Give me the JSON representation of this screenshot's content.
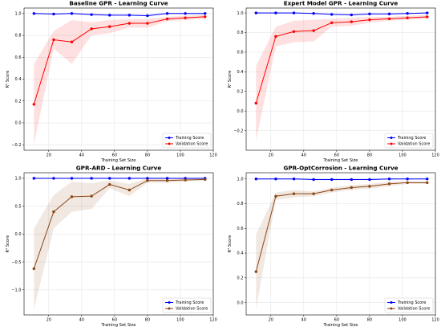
{
  "chart_data": [
    {
      "type": "line",
      "title": "Baseline GPR - Learning Curve",
      "xlabel": "Training Set Size",
      "ylabel": "R² Score",
      "xlim": [
        5,
        120
      ],
      "ylim": [
        -0.25,
        1.05
      ],
      "xticks": [
        20,
        40,
        60,
        80,
        100,
        120
      ],
      "yticks": [
        -0.2,
        0.0,
        0.2,
        0.4,
        0.6,
        0.8,
        1.0
      ],
      "grid": true,
      "legend": "bottom-right",
      "x": [
        11,
        23,
        34,
        46,
        57,
        69,
        80,
        92,
        103,
        115
      ],
      "series": [
        {
          "name": "Training Score",
          "color": "#0000ff",
          "values": [
            1.0,
            0.995,
            1.0,
            0.99,
            0.985,
            0.985,
            0.98,
            1.0,
            1.0,
            1.0
          ],
          "band": [
            [
              0.995,
              1.005
            ],
            [
              0.99,
              1.0
            ],
            [
              0.995,
              1.005
            ],
            [
              0.985,
              0.995
            ],
            [
              0.98,
              0.99
            ],
            [
              0.98,
              0.99
            ],
            [
              0.975,
              0.985
            ],
            [
              0.995,
              1.005
            ],
            [
              0.995,
              1.005
            ],
            [
              0.995,
              1.005
            ]
          ]
        },
        {
          "name": "Validation Score",
          "color": "#ff0000",
          "values": [
            0.17,
            0.76,
            0.74,
            0.86,
            0.88,
            0.91,
            0.91,
            0.95,
            0.96,
            0.97
          ],
          "band": [
            [
              -0.2,
              0.54
            ],
            [
              0.68,
              0.84
            ],
            [
              0.54,
              0.94
            ],
            [
              0.8,
              0.92
            ],
            [
              0.82,
              0.94
            ],
            [
              0.87,
              0.95
            ],
            [
              0.87,
              0.95
            ],
            [
              0.93,
              0.97
            ],
            [
              0.94,
              0.98
            ],
            [
              0.95,
              0.99
            ]
          ]
        }
      ]
    },
    {
      "type": "line",
      "title": "Expert Model GPR - Learning Curve",
      "xlabel": "Training Set Size",
      "ylabel": "R² Score",
      "xlim": [
        5,
        120
      ],
      "ylim": [
        -0.4,
        1.05
      ],
      "xticks": [
        20,
        40,
        60,
        80,
        100,
        120
      ],
      "yticks": [
        -0.2,
        0.0,
        0.2,
        0.4,
        0.6,
        0.8,
        1.0
      ],
      "grid": true,
      "legend": "bottom-right",
      "x": [
        11,
        23,
        34,
        46,
        57,
        69,
        80,
        92,
        103,
        115
      ],
      "series": [
        {
          "name": "Training Score",
          "color": "#0000ff",
          "values": [
            1.0,
            1.0,
            1.0,
            0.995,
            0.985,
            0.98,
            0.99,
            0.99,
            0.995,
            1.0
          ],
          "band": [
            [
              0.995,
              1.005
            ],
            [
              0.995,
              1.005
            ],
            [
              0.995,
              1.005
            ],
            [
              0.99,
              1.0
            ],
            [
              0.98,
              0.99
            ],
            [
              0.975,
              0.985
            ],
            [
              0.985,
              0.995
            ],
            [
              0.985,
              0.995
            ],
            [
              0.99,
              1.0
            ],
            [
              0.995,
              1.005
            ]
          ]
        },
        {
          "name": "Validation Score",
          "color": "#ff0000",
          "values": [
            0.08,
            0.76,
            0.81,
            0.82,
            0.9,
            0.91,
            0.93,
            0.94,
            0.95,
            0.96
          ],
          "band": [
            [
              -0.3,
              0.46
            ],
            [
              0.66,
              0.86
            ],
            [
              0.7,
              0.92
            ],
            [
              0.71,
              0.93
            ],
            [
              0.86,
              0.94
            ],
            [
              0.87,
              0.95
            ],
            [
              0.9,
              0.96
            ],
            [
              0.92,
              0.96
            ],
            [
              0.93,
              0.97
            ],
            [
              0.94,
              0.98
            ]
          ]
        }
      ]
    },
    {
      "type": "line",
      "title": "GPR-ARD - Learning Curve",
      "xlabel": "Training Set Size",
      "ylabel": "R² Score",
      "xlim": [
        5,
        120
      ],
      "ylim": [
        -1.45,
        1.1
      ],
      "xticks": [
        20,
        40,
        60,
        80,
        100,
        120
      ],
      "yticks": [
        -1.0,
        -0.5,
        0.0,
        0.5,
        1.0
      ],
      "grid": true,
      "legend": "bottom-right",
      "x": [
        11,
        23,
        34,
        46,
        57,
        69,
        80,
        92,
        103,
        115
      ],
      "series": [
        {
          "name": "Training Score",
          "color": "#0000ff",
          "values": [
            1.0,
            1.0,
            1.0,
            1.0,
            1.0,
            1.0,
            1.0,
            1.0,
            1.0,
            1.0
          ],
          "band": [
            [
              0.99,
              1.01
            ],
            [
              0.99,
              1.01
            ],
            [
              0.99,
              1.01
            ],
            [
              0.99,
              1.01
            ],
            [
              0.99,
              1.01
            ],
            [
              0.99,
              1.01
            ],
            [
              0.99,
              1.01
            ],
            [
              0.99,
              1.01
            ],
            [
              0.99,
              1.01
            ],
            [
              0.99,
              1.01
            ]
          ]
        },
        {
          "name": "Validation Score",
          "color": "#8b4513",
          "values": [
            -0.62,
            0.4,
            0.67,
            0.68,
            0.89,
            0.79,
            0.96,
            0.96,
            0.97,
            0.98
          ],
          "band": [
            [
              -1.35,
              0.1
            ],
            [
              0.1,
              0.7
            ],
            [
              0.4,
              0.94
            ],
            [
              0.45,
              0.91
            ],
            [
              0.82,
              0.96
            ],
            [
              0.68,
              0.9
            ],
            [
              0.92,
              1.0
            ],
            [
              0.92,
              1.0
            ],
            [
              0.94,
              1.0
            ],
            [
              0.96,
              1.0
            ]
          ]
        }
      ]
    },
    {
      "type": "line",
      "title": "GPR-OptCorrosion - Learning Curve",
      "xlabel": "Training Set Size",
      "ylabel": "R² Score",
      "xlim": [
        5,
        120
      ],
      "ylim": [
        -0.1,
        1.05
      ],
      "xticks": [
        20,
        40,
        60,
        80,
        100,
        120
      ],
      "yticks": [
        0.0,
        0.2,
        0.4,
        0.6,
        0.8,
        1.0
      ],
      "grid": true,
      "legend": "bottom-right",
      "x": [
        11,
        23,
        34,
        46,
        57,
        69,
        80,
        92,
        103,
        115
      ],
      "series": [
        {
          "name": "Training Score",
          "color": "#0000ff",
          "values": [
            1.0,
            1.0,
            1.0,
            0.995,
            0.995,
            0.995,
            0.995,
            1.0,
            1.0,
            1.0
          ],
          "band": [
            [
              0.995,
              1.005
            ],
            [
              0.995,
              1.005
            ],
            [
              0.995,
              1.005
            ],
            [
              0.99,
              1.0
            ],
            [
              0.99,
              1.0
            ],
            [
              0.99,
              1.0
            ],
            [
              0.99,
              1.0
            ],
            [
              0.995,
              1.005
            ],
            [
              0.995,
              1.005
            ],
            [
              0.995,
              1.005
            ]
          ]
        },
        {
          "name": "Validation Score",
          "color": "#8b4513",
          "values": [
            0.25,
            0.86,
            0.88,
            0.88,
            0.91,
            0.93,
            0.94,
            0.96,
            0.97,
            0.97
          ],
          "band": [
            [
              -0.05,
              0.55
            ],
            [
              0.83,
              0.89
            ],
            [
              0.85,
              0.91
            ],
            [
              0.86,
              0.9
            ],
            [
              0.89,
              0.93
            ],
            [
              0.91,
              0.95
            ],
            [
              0.92,
              0.96
            ],
            [
              0.94,
              0.98
            ],
            [
              0.96,
              0.98
            ],
            [
              0.96,
              0.98
            ]
          ]
        }
      ]
    }
  ]
}
